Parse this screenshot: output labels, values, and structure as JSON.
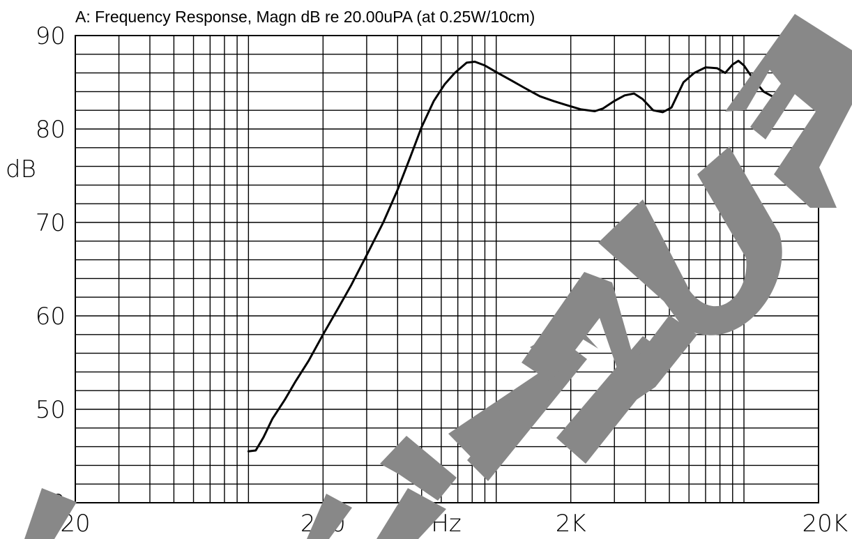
{
  "chart_data": {
    "type": "line",
    "title": "A: Frequency Response, Magn dB re 20.00uPA  (at 0.25W/10cm)",
    "xlabel": "Hz",
    "ylabel": "dB",
    "x_scale": "log",
    "xlim": [
      20,
      20000
    ],
    "ylim": [
      40,
      90
    ],
    "x_ticks": [
      {
        "value": 20,
        "label": "20"
      },
      {
        "value": 200,
        "label": "200"
      },
      {
        "value": 2000,
        "label": "2K"
      },
      {
        "value": 20000,
        "label": "20K"
      }
    ],
    "y_ticks": [
      {
        "value": 40,
        "label": "40"
      },
      {
        "value": 50,
        "label": "50"
      },
      {
        "value": 60,
        "label": "60"
      },
      {
        "value": 70,
        "label": "70"
      },
      {
        "value": 80,
        "label": "80"
      },
      {
        "value": 90,
        "label": "90"
      }
    ],
    "y_minor_step": 2,
    "grid": true,
    "watermark_color": "#888888",
    "series": [
      {
        "points": [
          [
            100,
            45.5
          ],
          [
            107,
            45.6
          ],
          [
            115,
            47.0
          ],
          [
            125,
            49.0
          ],
          [
            140,
            51.0
          ],
          [
            155,
            53.0
          ],
          [
            175,
            55.2
          ],
          [
            200,
            58.0
          ],
          [
            230,
            60.8
          ],
          [
            260,
            63.3
          ],
          [
            300,
            66.5
          ],
          [
            350,
            70.0
          ],
          [
            400,
            73.5
          ],
          [
            450,
            77.0
          ],
          [
            500,
            80.2
          ],
          [
            560,
            83.0
          ],
          [
            620,
            84.8
          ],
          [
            680,
            86.0
          ],
          [
            760,
            87.1
          ],
          [
            820,
            87.2
          ],
          [
            900,
            86.8
          ],
          [
            1000,
            86.1
          ],
          [
            1150,
            85.2
          ],
          [
            1300,
            84.4
          ],
          [
            1500,
            83.5
          ],
          [
            1700,
            83.0
          ],
          [
            1900,
            82.6
          ],
          [
            2200,
            82.1
          ],
          [
            2500,
            81.9
          ],
          [
            2700,
            82.2
          ],
          [
            3000,
            83.0
          ],
          [
            3300,
            83.6
          ],
          [
            3600,
            83.8
          ],
          [
            3900,
            83.2
          ],
          [
            4300,
            82.0
          ],
          [
            4700,
            81.8
          ],
          [
            5100,
            82.3
          ],
          [
            5700,
            85.0
          ],
          [
            6300,
            86.0
          ],
          [
            7000,
            86.6
          ],
          [
            7800,
            86.5
          ],
          [
            8400,
            86.0
          ],
          [
            9000,
            86.9
          ],
          [
            9500,
            87.3
          ],
          [
            10000,
            86.8
          ],
          [
            11000,
            85.2
          ],
          [
            12000,
            84.0
          ],
          [
            13000,
            83.5
          ],
          [
            14000,
            83.6
          ],
          [
            15500,
            84.0
          ],
          [
            17000,
            85.0
          ],
          [
            18500,
            84.8
          ]
        ]
      }
    ]
  }
}
